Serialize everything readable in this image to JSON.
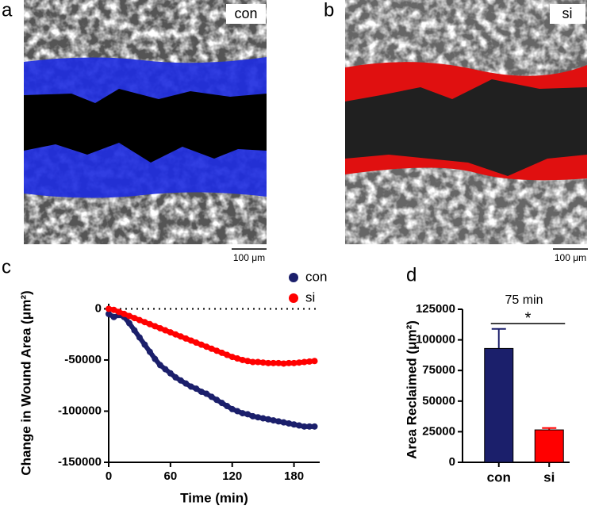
{
  "panels": [
    {
      "label": "a",
      "tag": "con",
      "scale_bar": "100 μm"
    },
    {
      "label": "b",
      "tag": "si",
      "scale_bar": "100 μm"
    }
  ],
  "chart_data": [
    {
      "type": "line",
      "panel": "c",
      "xlabel": "Time (min)",
      "ylabel": "Change in Wound Area (μm²)",
      "x": [
        0,
        5,
        10,
        15,
        20,
        25,
        30,
        35,
        40,
        45,
        50,
        55,
        60,
        65,
        70,
        75,
        80,
        85,
        90,
        95,
        100,
        105,
        110,
        115,
        120,
        125,
        130,
        135,
        140,
        145,
        150,
        155,
        160,
        165,
        170,
        175,
        180,
        185,
        190,
        195,
        200
      ],
      "series": [
        {
          "name": "con",
          "color": "#1b1f6b",
          "values": [
            -5000,
            -8000,
            -6000,
            -8000,
            -14000,
            -21000,
            -28000,
            -35000,
            -42000,
            -49000,
            -55000,
            -59000,
            -63000,
            -67000,
            -70000,
            -73000,
            -76000,
            -78000,
            -81000,
            -83000,
            -86000,
            -89000,
            -92000,
            -95000,
            -98000,
            -100000,
            -102000,
            -103000,
            -105000,
            -106000,
            -107000,
            -108000,
            -109000,
            -110000,
            -111000,
            -112000,
            -113000,
            -114000,
            -115000,
            -115000,
            -115000
          ]
        },
        {
          "name": "si",
          "color": "#ff0000",
          "values": [
            0,
            -1000,
            -3000,
            -5000,
            -7000,
            -9000,
            -11000,
            -13000,
            -15000,
            -17000,
            -19000,
            -21000,
            -23000,
            -25000,
            -27000,
            -29000,
            -31000,
            -33000,
            -35000,
            -37000,
            -39000,
            -41000,
            -43000,
            -45000,
            -47000,
            -48500,
            -50000,
            -51000,
            -52000,
            -52000,
            -52500,
            -53000,
            -53000,
            -53000,
            -53500,
            -53000,
            -53000,
            -52500,
            -52000,
            -51500,
            -51000
          ]
        }
      ],
      "xlim": [
        0,
        205
      ],
      "xticks": [
        0,
        60,
        120,
        180
      ],
      "ylim": [
        -150000,
        5000
      ],
      "yticks": [
        0,
        -50000,
        -100000,
        -150000
      ],
      "reference_line": 0,
      "legend": "upper right"
    },
    {
      "type": "bar",
      "panel": "d",
      "title": "75 min",
      "ylabel": "Area Reclaimed (μm²)",
      "annotation": "*",
      "categories": [
        "con",
        "si"
      ],
      "values": [
        93000,
        26500
      ],
      "errors": [
        16000,
        1500
      ],
      "colors": [
        "#1b1f6b",
        "#ff0000"
      ],
      "ylim": [
        0,
        125000
      ],
      "yticks": [
        0,
        25000,
        50000,
        75000,
        100000,
        125000
      ]
    }
  ]
}
